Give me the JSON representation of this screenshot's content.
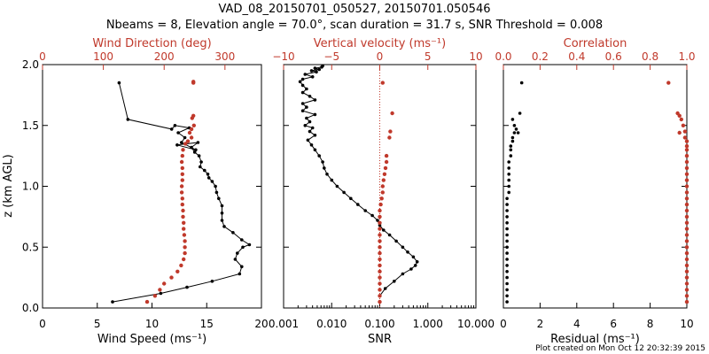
{
  "title_line1": "VAD_08_20150701_050527, 20150701.050546",
  "title_line2": "Nbeams = 8, Elevation angle = 70.0°, scan duration = 31.7 s, SNR Threshold = 0.008",
  "footer": "Plot created on Mon Oct 12 20:32:39 2015",
  "colors": {
    "black": "#000000",
    "red": "#c0392b"
  },
  "y_axis": {
    "label": "z (km AGL)",
    "ylim": [
      0,
      2
    ],
    "ticks": [
      "0.0",
      "0.5",
      "1.0",
      "1.5",
      "2.0"
    ]
  },
  "chart_data": [
    {
      "type": "line",
      "panel": "left",
      "xlabel": "Wind Speed (ms⁻¹)",
      "xlim": [
        0,
        20
      ],
      "xticks": [
        "0",
        "5",
        "10",
        "15",
        "20"
      ],
      "top_xlabel": "Wind Direction (deg)",
      "top_xlim": [
        0,
        360
      ],
      "top_xticks": [
        "0",
        "100",
        "200",
        "300"
      ],
      "series": [
        {
          "axis": "bottom",
          "color": "#000000",
          "x": [
            6.4,
            10.8,
            13.2,
            15.5,
            18.0,
            18.2,
            17.6,
            17.8,
            18.3,
            18.9,
            18.2,
            17.4,
            16.6,
            16.4,
            16.4,
            16.4,
            16.1,
            15.9,
            15.8,
            15.5,
            15.2,
            15.1,
            14.8,
            14.4,
            14.5,
            14.3,
            13.9,
            13.6,
            14.2,
            12.3,
            14.0,
            12.7,
            13.0,
            12.4,
            13.4,
            12.1,
            11.8,
            7.8,
            7.0
          ],
          "y": [
            0.05,
            0.12,
            0.17,
            0.22,
            0.28,
            0.34,
            0.4,
            0.45,
            0.5,
            0.52,
            0.56,
            0.62,
            0.67,
            0.72,
            0.78,
            0.84,
            0.9,
            0.95,
            1.0,
            1.04,
            1.07,
            1.1,
            1.13,
            1.16,
            1.2,
            1.25,
            1.28,
            1.32,
            1.36,
            1.34,
            1.3,
            1.36,
            1.4,
            1.44,
            1.48,
            1.5,
            1.47,
            1.55,
            1.85
          ]
        },
        {
          "axis": "top",
          "color": "#c0392b",
          "x": [
            172,
            185,
            193,
            200,
            212,
            222,
            228,
            232,
            234,
            234,
            234,
            233,
            232,
            232,
            231,
            231,
            230,
            230,
            229,
            229,
            230,
            230,
            230,
            229,
            230,
            231,
            235,
            239,
            245,
            242,
            245,
            249,
            246,
            248,
            248,
            248
          ],
          "y": [
            0.05,
            0.1,
            0.15,
            0.2,
            0.25,
            0.3,
            0.35,
            0.4,
            0.45,
            0.5,
            0.55,
            0.6,
            0.65,
            0.7,
            0.75,
            0.8,
            0.85,
            0.9,
            0.95,
            1.0,
            1.05,
            1.1,
            1.15,
            1.2,
            1.25,
            1.3,
            1.35,
            1.37,
            1.4,
            1.44,
            1.47,
            1.5,
            1.56,
            1.58,
            1.85,
            1.86
          ]
        }
      ]
    },
    {
      "type": "line",
      "panel": "middle",
      "xlabel": "SNR",
      "xscale": "log",
      "xlim": [
        0.001,
        10
      ],
      "xticks": [
        "0.001",
        "0.010",
        "0.100",
        "1.000",
        "10.000"
      ],
      "top_xlabel": "Vertical velocity (ms⁻¹)",
      "top_xlim": [
        -10,
        10
      ],
      "top_xticks": [
        "−10",
        "−5",
        "0",
        "5",
        "10"
      ],
      "series": [
        {
          "axis": "bottom",
          "color": "#000000",
          "x": [
            0.1,
            0.13,
            0.2,
            0.3,
            0.45,
            0.55,
            0.6,
            0.5,
            0.38,
            0.3,
            0.22,
            0.16,
            0.12,
            0.1,
            0.09,
            0.07,
            0.05,
            0.035,
            0.025,
            0.018,
            0.013,
            0.01,
            0.008,
            0.007,
            0.0065,
            0.0055,
            0.0045,
            0.0038,
            0.0032,
            0.0045,
            0.0035,
            0.004,
            0.0028,
            0.0035,
            0.003,
            0.0045,
            0.0025,
            0.003,
            0.0025,
            0.0045,
            0.0035,
            0.0025,
            0.003,
            0.0025,
            0.0022,
            0.0025,
            0.004,
            0.0028,
            0.0048,
            0.0038,
            0.0055,
            0.0045,
            0.0062,
            0.0065
          ],
          "y": [
            0.1,
            0.16,
            0.22,
            0.28,
            0.32,
            0.35,
            0.38,
            0.42,
            0.46,
            0.5,
            0.55,
            0.6,
            0.64,
            0.68,
            0.72,
            0.76,
            0.8,
            0.85,
            0.9,
            0.95,
            1.0,
            1.05,
            1.1,
            1.15,
            1.2,
            1.25,
            1.3,
            1.34,
            1.38,
            1.42,
            1.45,
            1.48,
            1.5,
            1.53,
            1.56,
            1.59,
            1.62,
            1.65,
            1.68,
            1.71,
            1.74,
            1.77,
            1.8,
            1.83,
            1.86,
            1.88,
            1.9,
            1.92,
            1.94,
            1.95,
            1.96,
            1.97,
            1.98,
            1.99
          ]
        },
        {
          "axis": "top",
          "color": "#c0392b",
          "x": [
            0,
            0,
            0,
            0,
            0,
            0,
            0,
            0,
            0,
            0,
            0,
            0,
            0,
            0,
            0,
            0,
            0.1,
            0.2,
            0.3,
            0.3,
            0.4,
            0.5,
            0.6,
            0.7,
            0.7,
            1.0,
            1.1,
            1.3,
            0.3
          ],
          "y": [
            0.05,
            0.1,
            0.15,
            0.2,
            0.25,
            0.3,
            0.35,
            0.4,
            0.45,
            0.5,
            0.55,
            0.6,
            0.65,
            0.7,
            0.75,
            0.8,
            0.85,
            0.9,
            0.95,
            1.0,
            1.05,
            1.1,
            1.15,
            1.2,
            1.25,
            1.4,
            1.45,
            1.6,
            1.85
          ]
        }
      ]
    },
    {
      "type": "scatter",
      "panel": "right",
      "xlabel": "Residual (ms⁻¹)",
      "xlim": [
        0,
        10
      ],
      "xticks": [
        "0",
        "2",
        "4",
        "6",
        "8",
        "10"
      ],
      "top_xlabel": "Correlation",
      "top_xlim": [
        0,
        1
      ],
      "top_xticks": [
        "0.0",
        "0.2",
        "0.4",
        "0.6",
        "0.8",
        "1.0"
      ],
      "series": [
        {
          "axis": "bottom",
          "color": "#000000",
          "x": [
            0.2,
            0.2,
            0.2,
            0.2,
            0.2,
            0.2,
            0.2,
            0.2,
            0.2,
            0.2,
            0.2,
            0.2,
            0.2,
            0.2,
            0.2,
            0.2,
            0.2,
            0.2,
            0.3,
            0.3,
            0.3,
            0.3,
            0.3,
            0.3,
            0.4,
            0.4,
            0.4,
            0.5,
            0.5,
            0.6,
            0.7,
            0.6,
            0.8,
            0.5,
            0.9,
            1.0
          ],
          "y": [
            0.05,
            0.1,
            0.15,
            0.2,
            0.25,
            0.3,
            0.35,
            0.4,
            0.45,
            0.5,
            0.55,
            0.6,
            0.65,
            0.7,
            0.75,
            0.8,
            0.85,
            0.9,
            0.95,
            1.0,
            1.05,
            1.1,
            1.15,
            1.2,
            1.25,
            1.3,
            1.33,
            1.37,
            1.4,
            1.44,
            1.47,
            1.5,
            1.44,
            1.55,
            1.6,
            1.85
          ]
        },
        {
          "axis": "top",
          "color": "#c0392b",
          "x": [
            1.0,
            1.0,
            1.0,
            1.0,
            1.0,
            1.0,
            1.0,
            1.0,
            1.0,
            1.0,
            1.0,
            1.0,
            1.0,
            1.0,
            1.0,
            1.0,
            1.0,
            1.0,
            1.0,
            1.0,
            1.0,
            1.0,
            1.0,
            1.0,
            1.0,
            1.0,
            1.0,
            1.0,
            0.99,
            0.99,
            0.98,
            0.97,
            0.96,
            0.95,
            0.96,
            0.9
          ],
          "y": [
            0.05,
            0.1,
            0.15,
            0.2,
            0.25,
            0.3,
            0.35,
            0.4,
            0.45,
            0.5,
            0.55,
            0.6,
            0.65,
            0.7,
            0.75,
            0.8,
            0.85,
            0.9,
            0.95,
            1.0,
            1.05,
            1.1,
            1.15,
            1.2,
            1.25,
            1.3,
            1.33,
            1.37,
            1.4,
            1.45,
            1.5,
            1.55,
            1.44,
            1.6,
            1.58,
            1.85
          ]
        }
      ]
    }
  ]
}
